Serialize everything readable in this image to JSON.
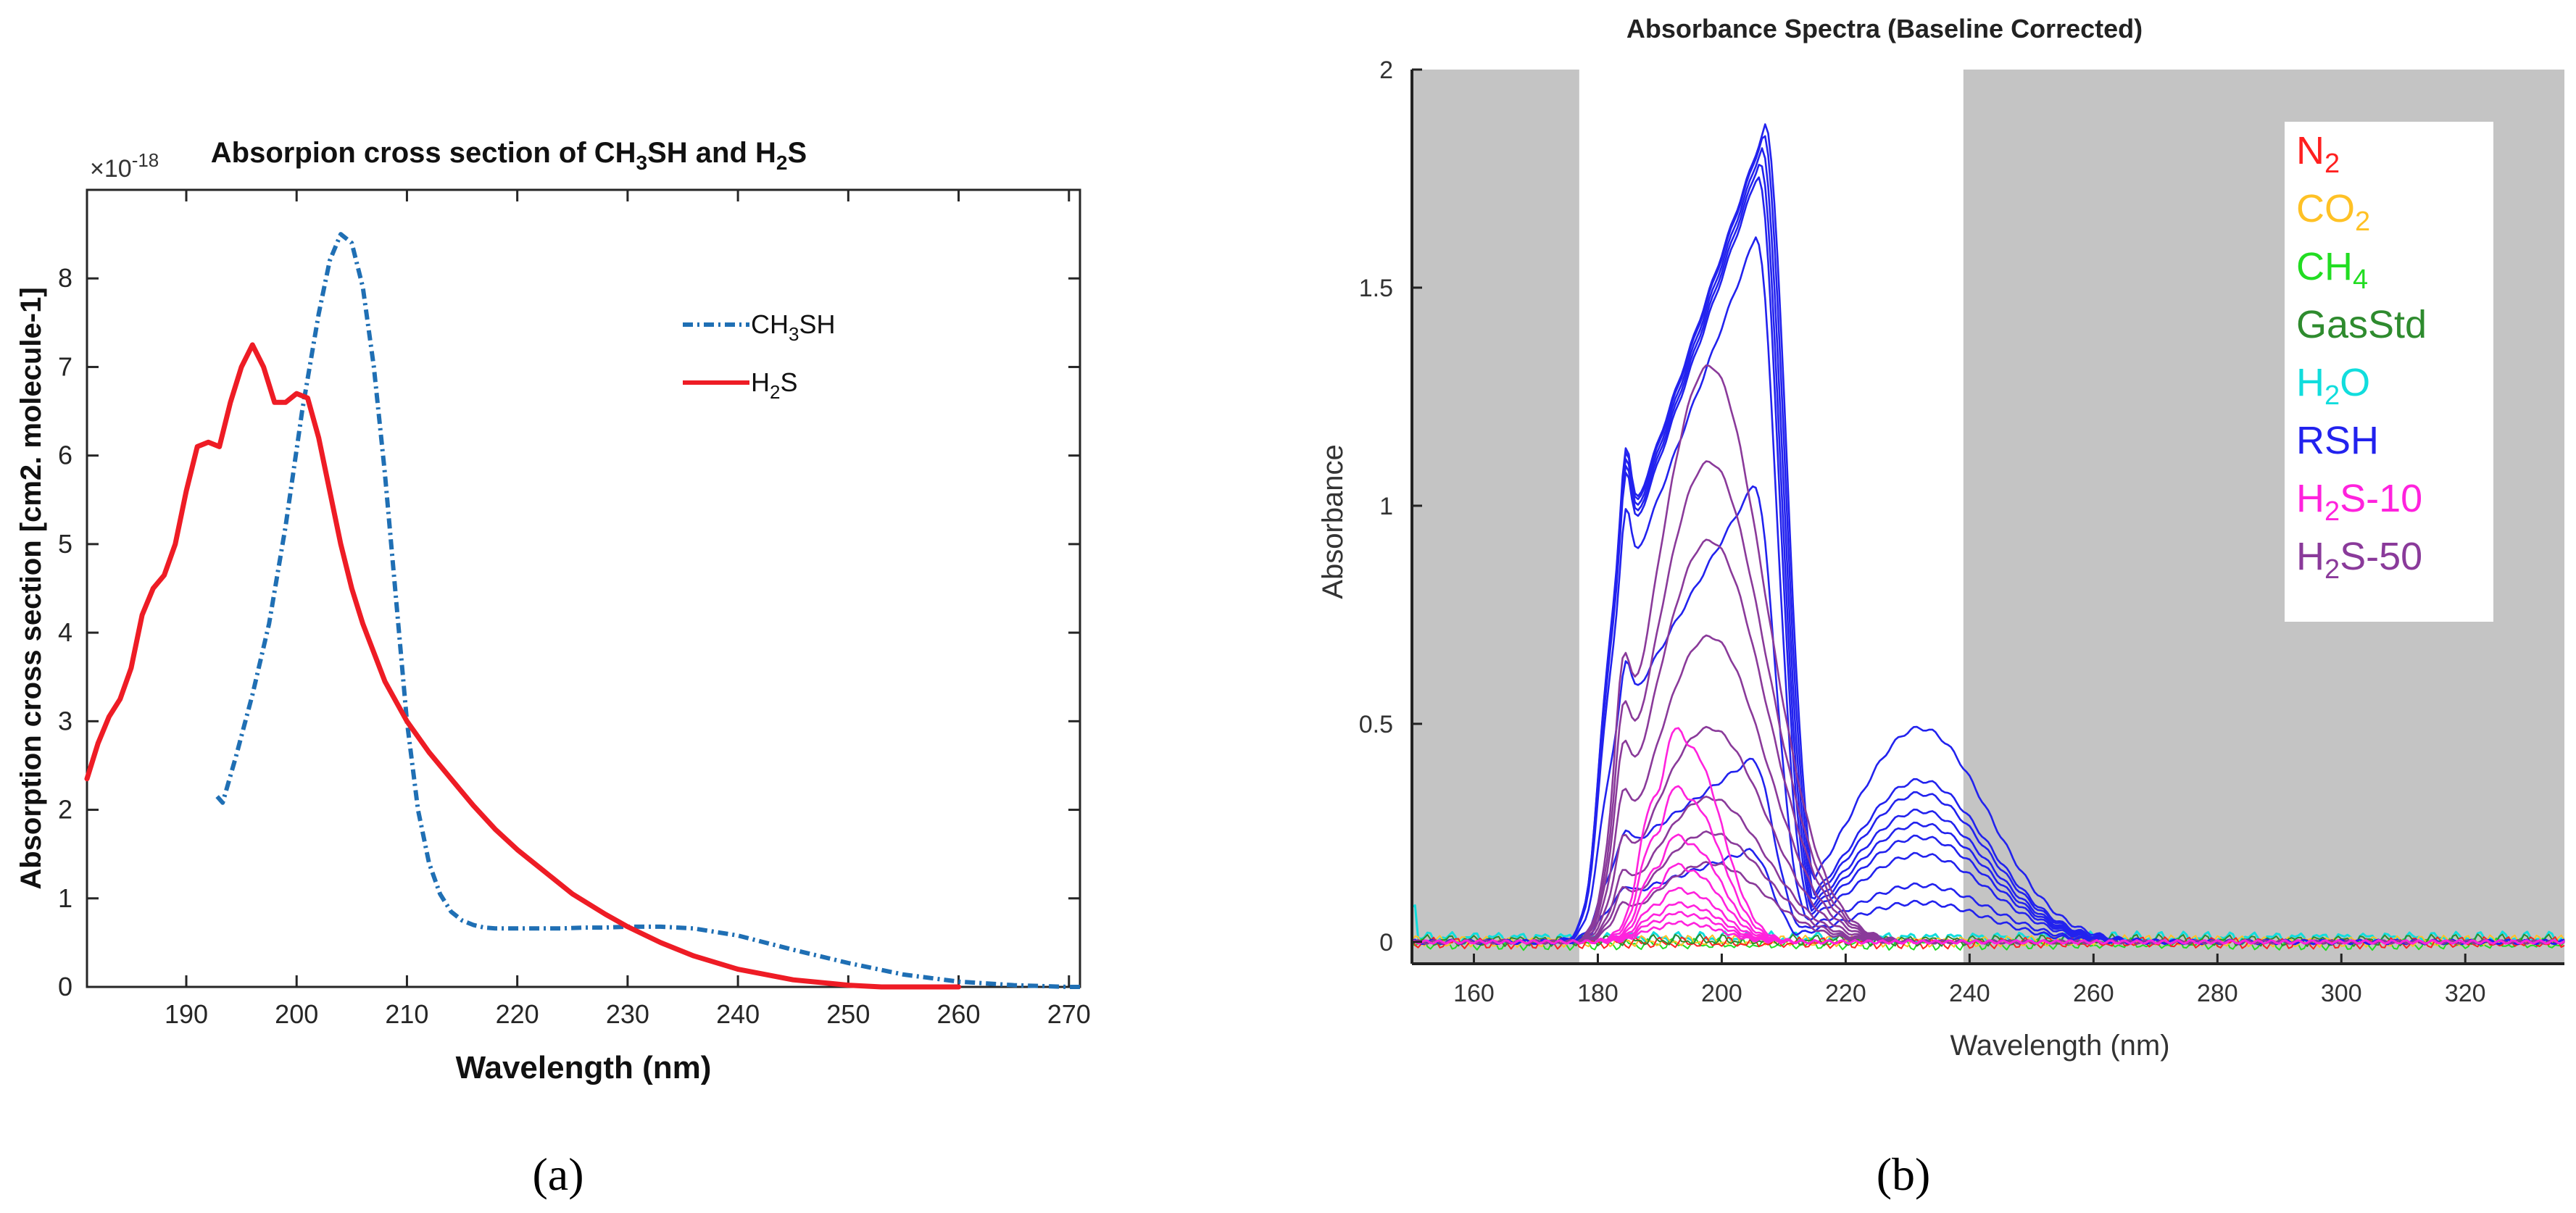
{
  "chart_data": [
    {
      "type": "line",
      "panel_label": "(a)",
      "title": {
        "pre": "Absorpion cross section of CH",
        "sub1": "3",
        "mid": "SH and H",
        "sub2": "2",
        "post": "S"
      },
      "exponent_label": {
        "base": "×10",
        "exp": "-18"
      },
      "xlabel": "Wavelength (nm)",
      "ylabel": "Absorption cross section [cm2. molecule-1]",
      "xlim": [
        181,
        271
      ],
      "ylim": [
        0,
        9
      ],
      "xticks": [
        190,
        200,
        210,
        220,
        230,
        240,
        250,
        260,
        270
      ],
      "yticks": [
        0,
        1,
        2,
        3,
        4,
        5,
        6,
        7,
        8
      ],
      "legend": [
        {
          "pre": "CH",
          "sub": "3",
          "post": "SH",
          "color": "#1f6fb4",
          "style": "dash-dot"
        },
        {
          "pre": "H",
          "sub": "2",
          "post": "S",
          "color": "#ee1c25",
          "style": "solid"
        }
      ],
      "series": [
        {
          "name": "CH3SH",
          "color": "#1f6fb4",
          "x": [
            192.8,
            193.3,
            194.5,
            196,
            197.5,
            199,
            200.5,
            202,
            203,
            204,
            205,
            206,
            207,
            208,
            209,
            210,
            211,
            212,
            213,
            214,
            215,
            216,
            217,
            218,
            220,
            222,
            224,
            226,
            228,
            230,
            233,
            236,
            240,
            245,
            250,
            255,
            260,
            265,
            270,
            271
          ],
          "y": [
            2.15,
            2.08,
            2.6,
            3.3,
            4.1,
            5.2,
            6.5,
            7.6,
            8.2,
            8.5,
            8.4,
            7.9,
            7.0,
            5.8,
            4.4,
            3.0,
            2.0,
            1.4,
            1.05,
            0.85,
            0.75,
            0.7,
            0.67,
            0.66,
            0.66,
            0.66,
            0.66,
            0.67,
            0.67,
            0.68,
            0.68,
            0.66,
            0.58,
            0.42,
            0.27,
            0.14,
            0.06,
            0.02,
            0.0,
            0.0
          ]
        },
        {
          "name": "H2S",
          "color": "#ee1c25",
          "x": [
            181,
            182,
            183,
            184,
            185,
            186,
            187,
            188,
            189,
            190,
            191,
            192,
            193,
            194,
            195,
            196,
            197,
            198,
            199,
            200,
            201,
            202,
            203,
            204,
            205,
            206,
            208,
            210,
            212,
            214,
            216,
            218,
            220,
            222,
            225,
            228,
            230,
            233,
            236,
            240,
            245,
            250,
            253,
            256,
            260
          ],
          "y": [
            2.35,
            2.75,
            3.05,
            3.25,
            3.6,
            4.2,
            4.5,
            4.65,
            5.0,
            5.6,
            6.1,
            6.15,
            6.1,
            6.6,
            7.0,
            7.25,
            7.0,
            6.6,
            6.6,
            6.7,
            6.65,
            6.2,
            5.6,
            5.0,
            4.5,
            4.1,
            3.45,
            3.0,
            2.65,
            2.35,
            2.05,
            1.78,
            1.55,
            1.35,
            1.05,
            0.82,
            0.68,
            0.5,
            0.35,
            0.2,
            0.08,
            0.02,
            0.0,
            0.0,
            0.0
          ]
        }
      ]
    },
    {
      "type": "line",
      "panel_label": "(b)",
      "title": "Absorbance Spectra (Baseline Corrected)",
      "xlabel": "Wavelength (nm)",
      "ylabel": "Absorbance",
      "xlim": [
        150,
        336
      ],
      "ylim": [
        -0.05,
        2.0
      ],
      "xticks": [
        160,
        180,
        200,
        220,
        240,
        260,
        280,
        300,
        320
      ],
      "yticks": [
        0,
        0.5,
        1,
        1.5,
        2
      ],
      "ytick_labels": [
        "0",
        "0.5",
        "1",
        "1.5",
        "2"
      ],
      "shaded_regions": [
        [
          150,
          177
        ],
        [
          239,
          336
        ]
      ],
      "legend": [
        {
          "pre": "N",
          "sub": "2",
          "post": "",
          "color": "#ff2020"
        },
        {
          "pre": "CO",
          "sub": "2",
          "post": "",
          "color": "#ffc125"
        },
        {
          "pre": "CH",
          "sub": "4",
          "post": "",
          "color": "#22dd22"
        },
        {
          "pre": "GasStd",
          "sub": "",
          "post": "",
          "color": "#2e8b2e"
        },
        {
          "pre": "H",
          "sub": "2",
          "post": "O",
          "color": "#11dddd"
        },
        {
          "pre": "RSH",
          "sub": "",
          "post": "",
          "color": "#2222ee"
        },
        {
          "pre": "H",
          "sub": "2",
          "post": "S-10",
          "color": "#ff22dd"
        },
        {
          "pre": "H",
          "sub": "2",
          "post": "S-50",
          "color": "#8a3a9a"
        }
      ],
      "groups": [
        {
          "name": "RSH",
          "color": "#2222ee",
          "main_peak_x": 207,
          "shoulder_x": 232,
          "peak_values": [
            1.87,
            1.85,
            1.82,
            1.79,
            1.76,
            1.62,
            1.05,
            0.42,
            0.21
          ],
          "shoulder_values": [
            0.49,
            0.37,
            0.34,
            0.3,
            0.27,
            0.24,
            0.2,
            0.13,
            0.09
          ]
        },
        {
          "name": "H2S-50",
          "color": "#8a3a9a",
          "main_peak_x": 198,
          "peak_values": [
            1.32,
            1.1,
            0.92,
            0.7,
            0.49,
            0.33,
            0.25,
            0.18
          ]
        },
        {
          "name": "H2S-10",
          "color": "#ff22dd",
          "main_peak_x": 195,
          "peak_values": [
            0.44,
            0.32,
            0.22,
            0.16,
            0.11,
            0.08,
            0.06,
            0.04
          ]
        },
        {
          "name": "H2O",
          "color": "#11dddd",
          "note": "near-zero baseline"
        }
      ]
    }
  ]
}
